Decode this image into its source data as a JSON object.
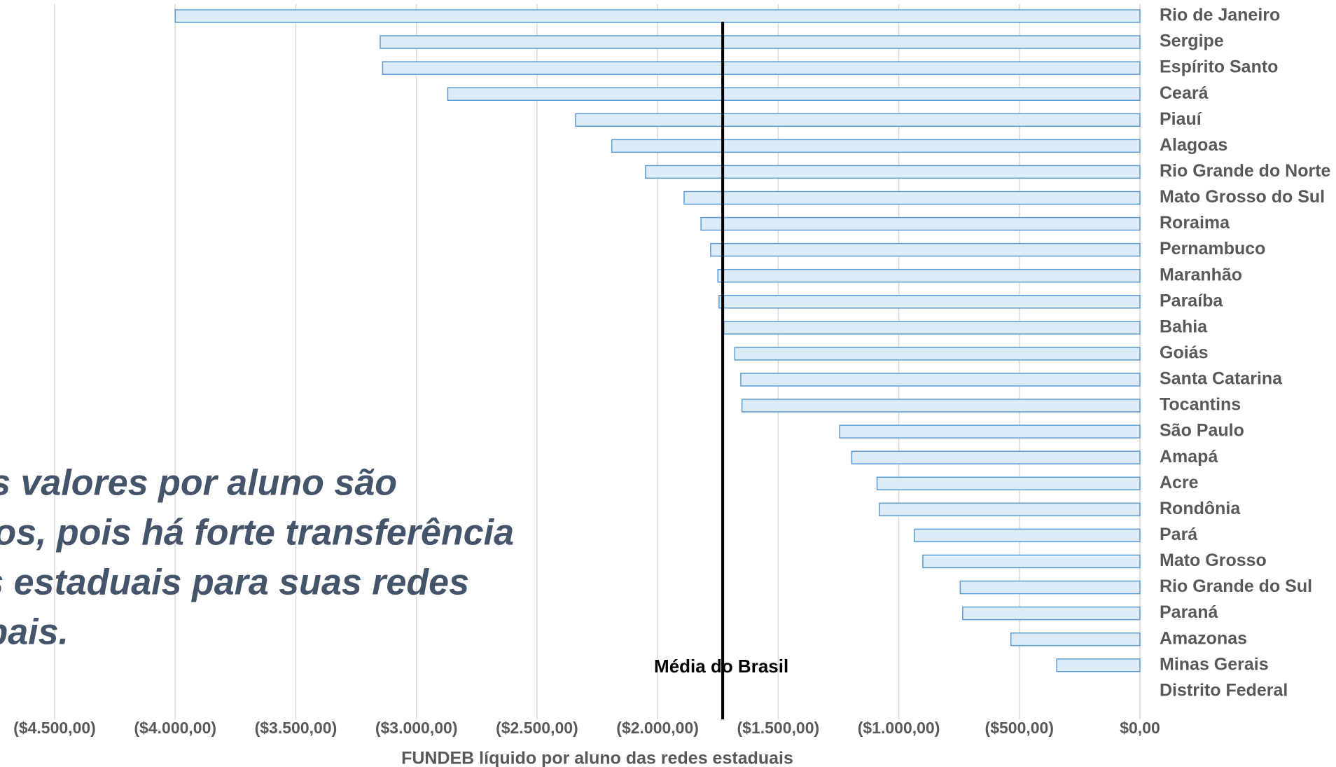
{
  "chart_data": {
    "type": "barh",
    "x_label": "FUNDEB líquido por aluno das redes estaduais",
    "categories": [
      "Rio de Janeiro",
      "Sergipe",
      "Espírito Santo",
      "Ceará",
      "Piauí",
      "Alagoas",
      "Rio Grande do Norte",
      "Mato Grosso do Sul",
      "Roraima",
      "Pernambuco",
      "Maranhão",
      "Paraíba",
      "Bahia",
      "Goiás",
      "Santa Catarina",
      "Tocantins",
      "São Paulo",
      "Amapá",
      "Acre",
      "Rondônia",
      "Pará",
      "Mato Grosso",
      "Rio Grande do Sul",
      "Paraná",
      "Amazonas",
      "Minas Gerais",
      "Distrito Federal"
    ],
    "values": [
      -4000,
      -3150,
      -3140,
      -2870,
      -2340,
      -2190,
      -2050,
      -1890,
      -1820,
      -1780,
      -1750,
      -1745,
      -1725,
      -1680,
      -1655,
      -1650,
      -1245,
      -1195,
      -1090,
      -1080,
      -935,
      -900,
      -745,
      -735,
      -535,
      -345,
      0
    ],
    "color": "#ddebf7",
    "edge_color": "#5b9bd5",
    "xlim": [
      -4500,
      0
    ],
    "xticks": [
      {
        "value": -4500,
        "label": "($4.500,00)"
      },
      {
        "value": -4000,
        "label": "($4.000,00)"
      },
      {
        "value": -3500,
        "label": "($3.500,00)"
      },
      {
        "value": -3000,
        "label": "($3.000,00)"
      },
      {
        "value": -2500,
        "label": "($2.500,00)"
      },
      {
        "value": -2000,
        "label": "($2.000,00)"
      },
      {
        "value": -1500,
        "label": "($1.500,00)"
      },
      {
        "value": -1000,
        "label": "($1.000,00)"
      },
      {
        "value": -500,
        "label": "($500,00)"
      },
      {
        "value": 0,
        "label": "$0,00"
      }
    ],
    "grid": true,
    "average": {
      "value": -1730,
      "label": "Média do Brasil"
    },
    "annotation": [
      "os valores por aluno são",
      "vos, pois há forte transferência",
      "es estaduais para suas redes",
      "pais."
    ]
  }
}
